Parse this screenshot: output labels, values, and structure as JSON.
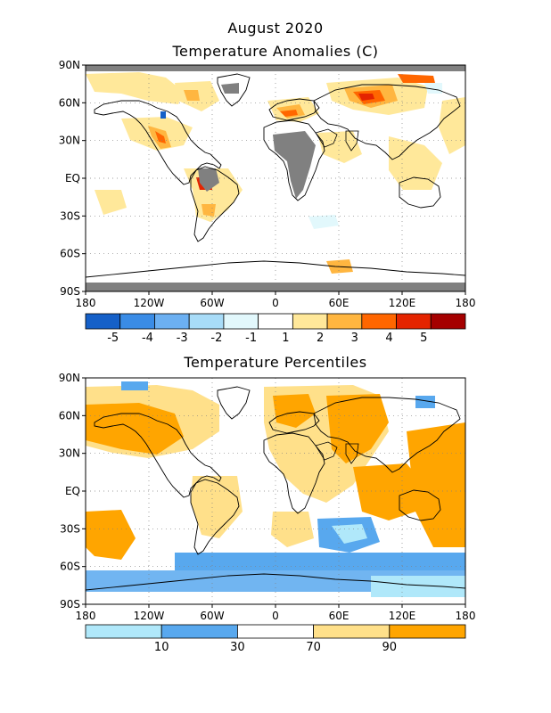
{
  "figure_title": "August 2020",
  "panel1": {
    "title": "Temperature Anomalies (C)",
    "lat_ticks": [
      "90N",
      "60N",
      "30N",
      "EQ",
      "30S",
      "60S",
      "90S"
    ],
    "lon_ticks": [
      "180",
      "120W",
      "60W",
      "0",
      "60E",
      "120E",
      "180"
    ],
    "colorbar_colors": [
      "#1560c8",
      "#3a8ce6",
      "#6cb0f2",
      "#a8dcf8",
      "#e2f8fc",
      "#ffffff",
      "#ffe89a",
      "#ffb640",
      "#ff6600",
      "#e42400",
      "#a50000"
    ],
    "colorbar_labels": [
      "-5",
      "-4",
      "-3",
      "-2",
      "-1",
      "1",
      "2",
      "3",
      "4",
      "5"
    ],
    "missing_color": "#808080"
  },
  "panel2": {
    "title": "Temperature Percentiles",
    "lat_ticks": [
      "90N",
      "60N",
      "30N",
      "EQ",
      "30S",
      "60S",
      "90S"
    ],
    "lon_ticks": [
      "180",
      "120W",
      "60W",
      "0",
      "60E",
      "120E",
      "180"
    ],
    "colorbar_colors": [
      "#b0e8fa",
      "#58a8ee",
      "#ffffff",
      "#ffe08a",
      "#ffa500"
    ],
    "colorbar_labels": [
      "10",
      "30",
      "70",
      "90"
    ]
  }
}
